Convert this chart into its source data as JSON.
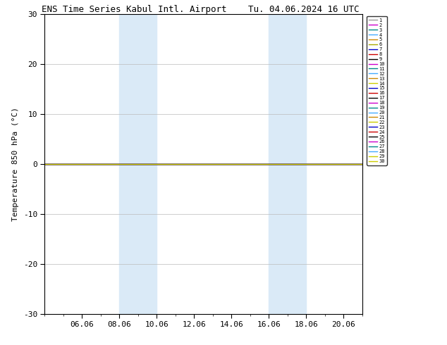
{
  "title_left": "ENS Time Series Kabul Intl. Airport",
  "title_right": "Tu. 04.06.2024 16 UTC",
  "ylabel": "Temperature 850 hPa (°C)",
  "ylim": [
    -30,
    30
  ],
  "yticks": [
    -30,
    -20,
    -10,
    0,
    10,
    20,
    30
  ],
  "xtick_labels": [
    "06.06",
    "08.06",
    "10.06",
    "12.06",
    "14.06",
    "16.06",
    "18.06",
    "20.06"
  ],
  "xtick_positions": [
    2,
    4,
    6,
    8,
    10,
    12,
    14,
    16
  ],
  "xlim": [
    0,
    17.0
  ],
  "shaded_bands": [
    {
      "x_start": 4,
      "x_end": 6
    },
    {
      "x_start": 12,
      "x_end": 14
    }
  ],
  "band_color": "#daeaf7",
  "flat_line_y": 0.0,
  "member_colors": [
    "#999999",
    "#cc00cc",
    "#008888",
    "#44aaff",
    "#cc8800",
    "#aaaa00",
    "#0000cc",
    "#cc0000",
    "#000000",
    "#cc00cc",
    "#008888",
    "#44aaff",
    "#cc8800",
    "#cccc00",
    "#0000cc",
    "#cc0000",
    "#000000",
    "#cc00cc",
    "#008888",
    "#44aaff",
    "#cc8800",
    "#cccc00",
    "#0000cc",
    "#cc0000",
    "#000000",
    "#cc00cc",
    "#008888",
    "#44aaff",
    "#cccc00",
    "#cccc00"
  ],
  "background_color": "#ffffff",
  "grid_color": "#bbbbbb",
  "title_fontsize": 9,
  "ylabel_fontsize": 8,
  "tick_fontsize": 8
}
